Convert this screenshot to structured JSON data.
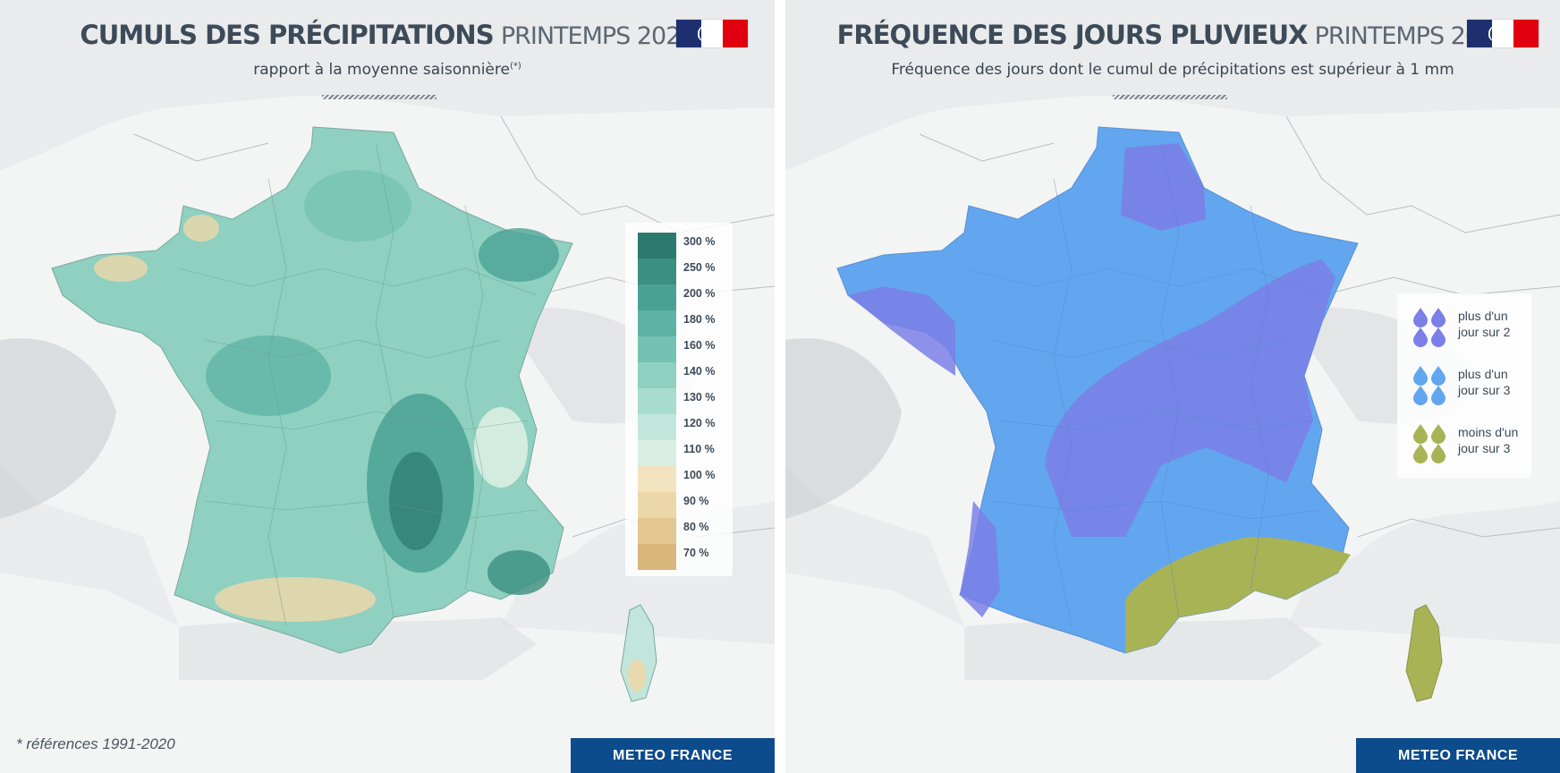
{
  "left_panel": {
    "title_bold": "CUMULS DES PRÉCIPITATIONS",
    "title_light": "PRINTEMPS 2024",
    "subtitle": "rapport à la moyenne saisonnière",
    "subtitle_sup": "(*)",
    "legend": {
      "ticks": [
        "300 %",
        "250 %",
        "200 %",
        "180 %",
        "160 %",
        "140 %",
        "130 %",
        "120 %",
        "110 %",
        "100 %",
        "90 %",
        "80 %",
        "70 %"
      ],
      "colors": [
        "#2b7a6d",
        "#3a8f80",
        "#4aa294",
        "#5cb3a4",
        "#74c2b2",
        "#8fd0c0",
        "#a8dccd",
        "#c2e6db",
        "#dbeee3",
        "#f1e3bf",
        "#ecd7a8",
        "#e3c791",
        "#d9b77c"
      ]
    },
    "footnote": "* références 1991-2020",
    "brand": "METEO FRANCE"
  },
  "right_panel": {
    "title_bold": "FRÉQUENCE DES JOURS PLUVIEUX",
    "title_light": "PRINTEMPS 2024",
    "subtitle": "Fréquence des jours dont le cumul de précipitations est supérieur à 1 mm",
    "legend": [
      {
        "line1": "plus d'un",
        "line2": "jour sur 2",
        "color": "#7b7fe6"
      },
      {
        "line1": "plus d'un",
        "line2": "jour sur 3",
        "color": "#62a6ef"
      },
      {
        "line1": "moins d'un",
        "line2": "jour sur 3",
        "color": "#a8b356"
      }
    ],
    "brand": "METEO FRANCE"
  },
  "map_colors": {
    "background": "#e9ebec",
    "land": "#f3f4f4",
    "borders": "#b9bec3",
    "precip_base": "#8fd0c0",
    "precip_wet": "#4aa294",
    "precip_dry": "#ecd7a8",
    "freq_base": "#62a6ef",
    "freq_high": "#7b7fe6",
    "freq_low": "#a8b356"
  }
}
